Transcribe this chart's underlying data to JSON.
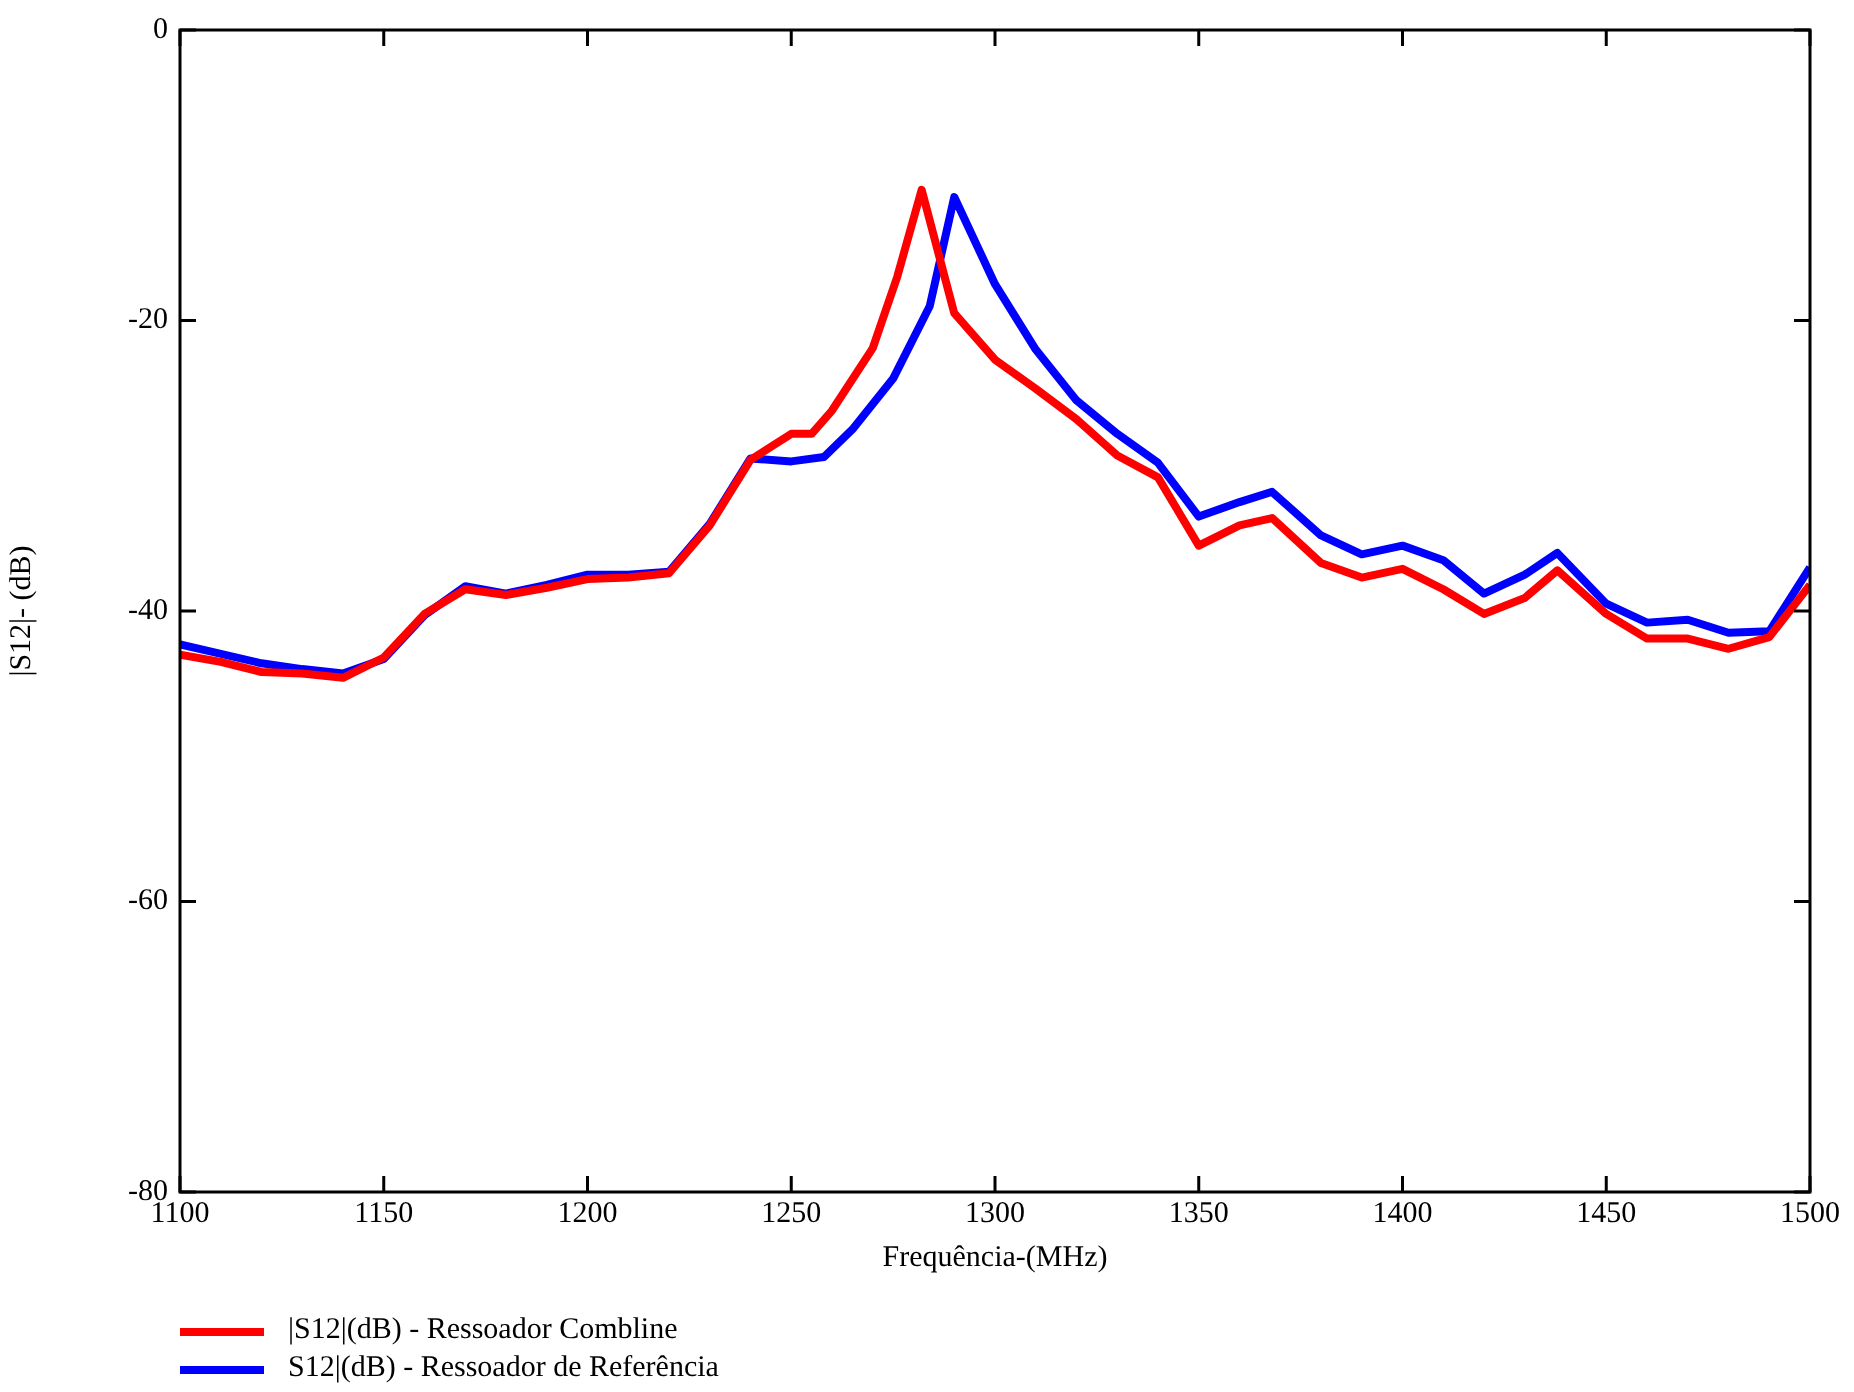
{
  "chart_data": {
    "type": "line",
    "xlabel": "Frequência-(MHz)",
    "ylabel": "|S12|- (dB)",
    "xlim": [
      1100,
      1500
    ],
    "xticks": [
      1100,
      1150,
      1200,
      1250,
      1300,
      1350,
      1400,
      1450,
      1500
    ],
    "ylim": [
      -80,
      0
    ],
    "yticks": [
      -80,
      -60,
      -40,
      -20,
      0
    ],
    "grid": false,
    "legend": "bottom left",
    "marker": "none",
    "line_style": "solid",
    "series": [
      {
        "name": "|S12|(dB) - Ressoador Combline",
        "color": "#ff0000",
        "x": [
          1100,
          1110,
          1120,
          1130,
          1140,
          1150,
          1160,
          1170,
          1180,
          1190,
          1200,
          1210,
          1220,
          1230,
          1240,
          1250,
          1255,
          1260,
          1270,
          1276,
          1282,
          1290,
          1300,
          1310,
          1320,
          1330,
          1340,
          1350,
          1360,
          1368,
          1380,
          1390,
          1400,
          1410,
          1420,
          1430,
          1438,
          1450,
          1460,
          1470,
          1480,
          1490,
          1500
        ],
        "values": [
          -43.0,
          -43.5,
          -44.2,
          -44.3,
          -44.6,
          -43.2,
          -40.2,
          -38.5,
          -38.9,
          -38.4,
          -37.8,
          -37.7,
          -37.4,
          -34.1,
          -29.6,
          -27.8,
          -27.8,
          -26.2,
          -21.9,
          -17,
          -11.0,
          -19.5,
          -22.7,
          -24.7,
          -26.8,
          -29.3,
          -30.8,
          -35.5,
          -34.1,
          -33.6,
          -36.7,
          -37.7,
          -37.1,
          -38.5,
          -40.2,
          -39.1,
          -37.2,
          -40.2,
          -41.9,
          -41.9,
          -42.6,
          -41.8,
          -38.2
        ]
      },
      {
        "name": "S12|(dB) - Ressoador de Referência",
        "color": "#0000ff",
        "x": [
          1100,
          1120,
          1130,
          1140,
          1150,
          1160,
          1170,
          1180,
          1190,
          1200,
          1210,
          1220,
          1230,
          1240,
          1250,
          1258,
          1265,
          1275,
          1284,
          1290,
          1300,
          1310,
          1320,
          1330,
          1340,
          1350,
          1360,
          1368,
          1380,
          1390,
          1400,
          1410,
          1420,
          1430,
          1438,
          1450,
          1460,
          1470,
          1480,
          1490,
          1500
        ],
        "values": [
          -42.3,
          -43.6,
          -44.0,
          -44.3,
          -43.3,
          -40.3,
          -38.3,
          -38.8,
          -38.2,
          -37.5,
          -37.5,
          -37.3,
          -34.0,
          -29.5,
          -29.7,
          -29.4,
          -27.5,
          -24,
          -19,
          -11.5,
          -17.5,
          -22,
          -25.5,
          -27.8,
          -29.8,
          -33.5,
          -32.5,
          -31.8,
          -34.8,
          -36.1,
          -35.5,
          -36.5,
          -38.8,
          -37.5,
          -36,
          -39.5,
          -40.8,
          -40.6,
          -41.5,
          -41.4,
          -37.0
        ]
      }
    ]
  }
}
